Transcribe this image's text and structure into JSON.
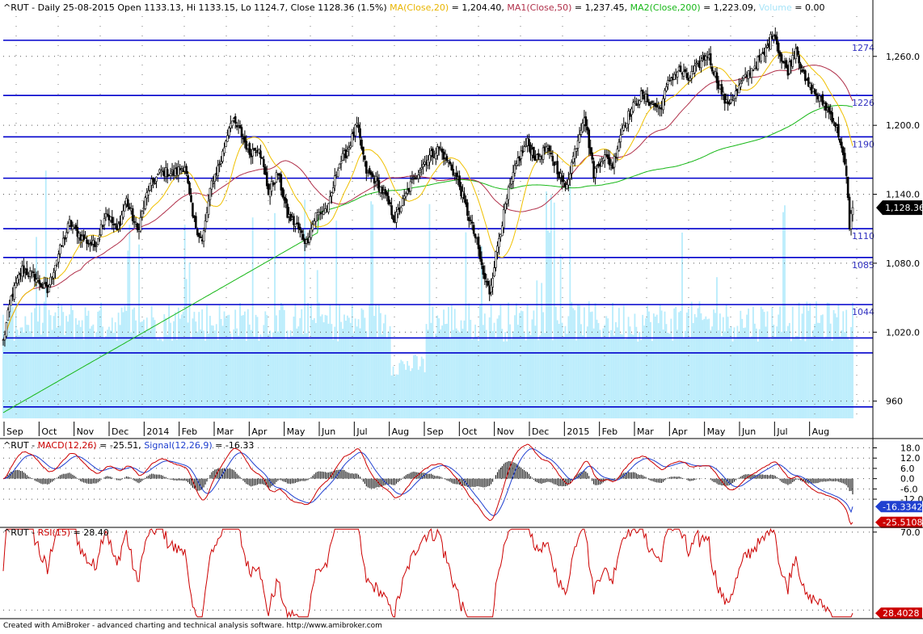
{
  "chart_data": [
    {
      "type": "line",
      "name": "price",
      "title_parts": [
        {
          "text": "^RUT - Daily 25-08-2015 Open 1133.13, Hi 1133.15, Lo 1124.7, Close 1128.36 (1.5%) ",
          "color": "#000000"
        },
        {
          "text": "MA(Close,20)",
          "color": "#e8b400"
        },
        {
          "text": " = 1,204.40, ",
          "color": "#000000"
        },
        {
          "text": "MA1(Close,50)",
          "color": "#b0304a"
        },
        {
          "text": " = 1,237.45, ",
          "color": "#000000"
        },
        {
          "text": "MA2(Close,200)",
          "color": "#18b818"
        },
        {
          "text": " = 1,223.09, ",
          "color": "#000000"
        },
        {
          "text": "Volume",
          "color": "#a8e4f8"
        },
        {
          "text": " = 0.00",
          "color": "#000000"
        }
      ],
      "ylim": [
        945,
        1295
      ],
      "y_ticks": [
        960,
        1020,
        1080,
        1140,
        1200,
        1260
      ],
      "y_tick_labels": [
        "960",
        "1,020.0",
        "1,080.0",
        "1,140.0",
        "1,200.0",
        "1,260.0"
      ],
      "x_tick_labels": [
        "Sep",
        "Oct",
        "Nov",
        "Dec",
        "2014",
        "Feb",
        "Mar",
        "Apr",
        "May",
        "Jun",
        "Jul",
        "Aug",
        "Sep",
        "Oct",
        "Nov",
        "Dec",
        "2015",
        "Feb",
        "Mar",
        "Apr",
        "May",
        "Jun",
        "Jul",
        "Aug"
      ],
      "levels": [
        {
          "value": 1274,
          "label": "1274"
        },
        {
          "value": 1226,
          "label": "1226"
        },
        {
          "value": 1190,
          "label": "1190"
        },
        {
          "value": 1154,
          "label": ""
        },
        {
          "value": 1110,
          "label": "1110"
        },
        {
          "value": 1085,
          "label": "1085"
        },
        {
          "value": 1044,
          "label": "1044"
        },
        {
          "value": 1015,
          "label": ""
        },
        {
          "value": 1002,
          "label": ""
        },
        {
          "value": 955,
          "label": ""
        }
      ],
      "last_value_label": "1,128.36",
      "close_anchors": [
        [
          0,
          1012
        ],
        [
          5,
          1050
        ],
        [
          12,
          1075
        ],
        [
          20,
          1068
        ],
        [
          28,
          1055
        ],
        [
          33,
          1080
        ],
        [
          42,
          1115
        ],
        [
          50,
          1102
        ],
        [
          58,
          1095
        ],
        [
          65,
          1125
        ],
        [
          72,
          1108
        ],
        [
          78,
          1135
        ],
        [
          85,
          1108
        ],
        [
          92,
          1145
        ],
        [
          100,
          1160
        ],
        [
          108,
          1158
        ],
        [
          115,
          1165
        ],
        [
          120,
          1120
        ],
        [
          126,
          1098
        ],
        [
          132,
          1150
        ],
        [
          138,
          1170
        ],
        [
          144,
          1205
        ],
        [
          150,
          1195
        ],
        [
          156,
          1176
        ],
        [
          162,
          1182
        ],
        [
          168,
          1142
        ],
        [
          174,
          1158
        ],
        [
          180,
          1122
        ],
        [
          186,
          1112
        ],
        [
          192,
          1098
        ],
        [
          198,
          1122
        ],
        [
          206,
          1128
        ],
        [
          212,
          1165
        ],
        [
          218,
          1178
        ],
        [
          224,
          1200
        ],
        [
          230,
          1160
        ],
        [
          236,
          1152
        ],
        [
          242,
          1138
        ],
        [
          248,
          1118
        ],
        [
          252,
          1130
        ],
        [
          258,
          1148
        ],
        [
          264,
          1163
        ],
        [
          270,
          1173
        ],
        [
          276,
          1180
        ],
        [
          282,
          1168
        ],
        [
          288,
          1152
        ],
        [
          294,
          1124
        ],
        [
          300,
          1098
        ],
        [
          304,
          1070
        ],
        [
          308,
          1055
        ],
        [
          314,
          1103
        ],
        [
          320,
          1142
        ],
        [
          326,
          1170
        ],
        [
          332,
          1185
        ],
        [
          338,
          1170
        ],
        [
          344,
          1180
        ],
        [
          350,
          1165
        ],
        [
          356,
          1145
        ],
        [
          362,
          1178
        ],
        [
          368,
          1210
        ],
        [
          374,
          1158
        ],
        [
          380,
          1174
        ],
        [
          386,
          1165
        ],
        [
          392,
          1198
        ],
        [
          398,
          1214
        ],
        [
          404,
          1226
        ],
        [
          410,
          1220
        ],
        [
          416,
          1214
        ],
        [
          422,
          1240
        ],
        [
          428,
          1248
        ],
        [
          434,
          1240
        ],
        [
          440,
          1252
        ],
        [
          446,
          1262
        ],
        [
          452,
          1240
        ],
        [
          458,
          1218
        ],
        [
          464,
          1228
        ],
        [
          470,
          1242
        ],
        [
          476,
          1252
        ],
        [
          482,
          1262
        ],
        [
          488,
          1282
        ],
        [
          493,
          1256
        ],
        [
          497,
          1248
        ],
        [
          502,
          1268
        ],
        [
          508,
          1238
        ],
        [
          514,
          1228
        ],
        [
          520,
          1218
        ],
        [
          526,
          1205
        ],
        [
          530,
          1188
        ],
        [
          534,
          1155
        ],
        [
          536,
          1113
        ],
        [
          538,
          1128
        ]
      ],
      "n_days": 539,
      "volume_level_note": "Volume shown as light-blue bars in background"
    },
    {
      "type": "line",
      "name": "macd",
      "title_parts": [
        {
          "text": "^RUT - ",
          "color": "#000000"
        },
        {
          "text": "MACD(12,26)",
          "color": "#cc0000"
        },
        {
          "text": " = -25.51, ",
          "color": "#000000"
        },
        {
          "text": "Signal(12,26,9)",
          "color": "#2040d0"
        },
        {
          "text": " = -16.33",
          "color": "#000000"
        }
      ],
      "ylim": [
        -28,
        22
      ],
      "y_ticks": [
        18,
        12,
        6,
        0,
        -6,
        -12
      ],
      "y_tick_labels": [
        "18.0",
        "12.0",
        "6.0",
        "0.0",
        "-6.0",
        "-12.0"
      ],
      "last_values": [
        {
          "label": "-16.3342",
          "color": "#2040d0"
        },
        {
          "label": "-25.5108",
          "color": "#cc0000"
        }
      ]
    },
    {
      "type": "line",
      "name": "rsi",
      "title_parts": [
        {
          "text": "^RUT - ",
          "color": "#000000"
        },
        {
          "text": "RSI(15)",
          "color": "#cc0000"
        },
        {
          "text": " = 28.40",
          "color": "#000000"
        }
      ],
      "ylim": [
        26,
        72
      ],
      "y_ticks": [
        70
      ],
      "y_tick_labels": [
        "70.0"
      ],
      "last_value_label": "28.4028"
    }
  ],
  "footer": "Created with AmiBroker - advanced charting and technical analysis software. http://www.amibroker.com",
  "colors": {
    "level_line": "#0000cc",
    "level_label": "#3030c0",
    "volume": "#b8ecfc",
    "candle": "#000000",
    "ma20": "#f0c000",
    "ma50": "#b0304a",
    "ma200": "#18b818",
    "macd": "#cc0000",
    "signal": "#2040d0",
    "rsi": "#cc0000"
  }
}
